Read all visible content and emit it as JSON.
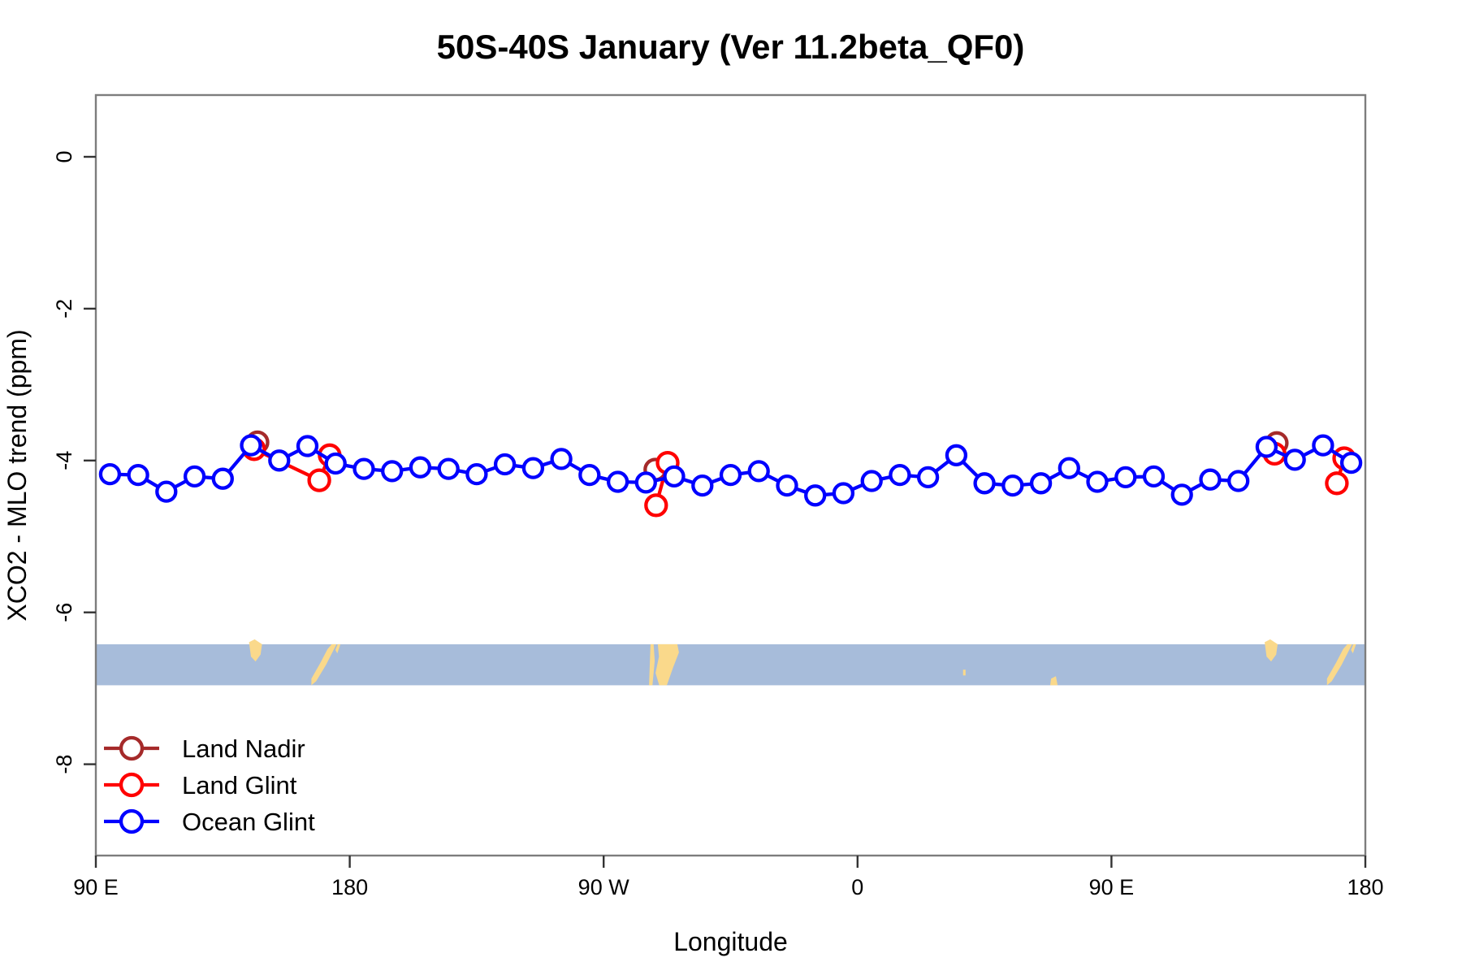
{
  "page": {
    "title": "50S-40S January (Ver 11.2beta_QF0)"
  },
  "axes": {
    "xlabel": "Longitude",
    "ylabel": "XCO2 - MLO trend (ppm)",
    "x_ticks": [
      {
        "pos": 90,
        "label": "90 E"
      },
      {
        "pos": 180,
        "label": "180"
      },
      {
        "pos": 270,
        "label": "90 W"
      },
      {
        "pos": 360,
        "label": "0"
      },
      {
        "pos": 450,
        "label": "90 E"
      },
      {
        "pos": 540,
        "label": "180"
      }
    ],
    "y_ticks": [
      {
        "pos": 0,
        "label": "0"
      },
      {
        "pos": -2,
        "label": "-2"
      },
      {
        "pos": -4,
        "label": "-4"
      },
      {
        "pos": -6,
        "label": "-6"
      },
      {
        "pos": -8,
        "label": "-8"
      }
    ]
  },
  "legend": {
    "items": [
      {
        "label": "Land Nadir",
        "color": "#A52A2A"
      },
      {
        "label": "Land Glint",
        "color": "#FF0000"
      },
      {
        "label": "Ocean Glint",
        "color": "#0000FF"
      }
    ]
  },
  "chart_data": {
    "type": "line",
    "title": "50S-40S January (Ver 11.2beta_QF0)",
    "xlabel": "Longitude",
    "ylabel": "XCO2 - MLO trend (ppm)",
    "xlim": [
      90,
      540
    ],
    "ylim": [
      -9.2,
      0.8
    ],
    "x_tick_values": [
      90,
      180,
      270,
      360,
      450,
      540
    ],
    "x_tick_labels": [
      "90 E",
      "180",
      "90 W",
      "0",
      "90 E",
      "180"
    ],
    "y_tick_values": [
      0,
      -2,
      -4,
      -6,
      -8
    ],
    "grid": false,
    "legend_position": "bottom-left-inside",
    "marker": "open-circle",
    "series": [
      {
        "name": "Land Nadir",
        "color": "#A52A2A",
        "marker_radius": 12.5,
        "segments": [
          [
            [
              147.3,
              -3.76
            ]
          ],
          [
            [
              288.3,
              -4.12
            ]
          ],
          [
            [
              508.6,
              -3.77
            ]
          ]
        ]
      },
      {
        "name": "Land Glint",
        "color": "#FF0000",
        "marker_radius": 12.5,
        "segments": [
          [
            [
              146.1,
              -3.85
            ],
            [
              169.2,
              -4.26
            ],
            [
              172.9,
              -3.93
            ]
          ],
          [
            [
              288.6,
              -4.59
            ],
            [
              292.7,
              -4.03
            ]
          ],
          [
            [
              507.8,
              -3.91
            ]
          ],
          [
            [
              529.9,
              -4.3
            ],
            [
              532.5,
              -3.97
            ]
          ]
        ]
      },
      {
        "name": "Ocean Glint",
        "color": "#0000FF",
        "marker_radius": 11.5,
        "segments": [
          [
            [
              95,
              -4.18
            ],
            [
              105,
              -4.19
            ],
            [
              115,
              -4.41
            ],
            [
              125,
              -4.21
            ],
            [
              135,
              -4.24
            ],
            [
              145,
              -3.8
            ],
            [
              155,
              -4.0
            ],
            [
              165,
              -3.81
            ],
            [
              175,
              -4.04
            ],
            [
              185,
              -4.11
            ],
            [
              195,
              -4.14
            ],
            [
              205,
              -4.09
            ],
            [
              215,
              -4.11
            ],
            [
              225,
              -4.18
            ],
            [
              235,
              -4.05
            ],
            [
              245,
              -4.1
            ],
            [
              255,
              -3.98
            ],
            [
              265,
              -4.19
            ],
            [
              275,
              -4.28
            ],
            [
              285,
              -4.29
            ],
            [
              295,
              -4.21
            ],
            [
              305,
              -4.33
            ],
            [
              315,
              -4.19
            ],
            [
              325,
              -4.14
            ],
            [
              335,
              -4.33
            ],
            [
              345,
              -4.46
            ],
            [
              355,
              -4.43
            ],
            [
              365,
              -4.27
            ],
            [
              375,
              -4.19
            ],
            [
              385,
              -4.22
            ],
            [
              395,
              -3.93
            ],
            [
              405,
              -4.3
            ],
            [
              415,
              -4.33
            ],
            [
              425,
              -4.3
            ],
            [
              435,
              -4.1
            ],
            [
              445,
              -4.28
            ],
            [
              455,
              -4.22
            ],
            [
              465,
              -4.21
            ],
            [
              475,
              -4.45
            ],
            [
              485,
              -4.25
            ],
            [
              495,
              -4.27
            ],
            [
              505,
              -3.82
            ],
            [
              515,
              -3.99
            ],
            [
              525,
              -3.8
            ],
            [
              535,
              -4.03
            ]
          ]
        ]
      }
    ],
    "map_strip": {
      "ocean_color": "#A7BCDA",
      "land_color": "#FAD98B",
      "ppm_top": -6.42,
      "ppm_bottom": -6.96,
      "repeat_offset_degrees": 360,
      "patches": [
        {
          "name": "tasmania",
          "polys": [
            [
              [
                144.3,
                -0.05
              ],
              [
                146.3,
                -0.12
              ],
              [
                148.9,
                0.0
              ],
              [
                148.4,
                0.25
              ],
              [
                146.6,
                0.42
              ],
              [
                145.0,
                0.3
              ]
            ]
          ]
        },
        {
          "name": "new-zealand",
          "polys": [
            [
              [
                173.6,
                0.0
              ],
              [
                175.3,
                0.0
              ],
              [
                171.6,
                0.5
              ],
              [
                168.1,
                0.9
              ],
              [
                166.4,
                1.0
              ],
              [
                166.4,
                0.84
              ],
              [
                169.6,
                0.45
              ],
              [
                172.1,
                0.12
              ]
            ],
            [
              [
                175.7,
                0.0
              ],
              [
                176.7,
                0.0
              ],
              [
                175.6,
                0.22
              ],
              [
                174.9,
                0.14
              ]
            ]
          ]
        },
        {
          "name": "south-america",
          "polys": [
            [
              [
                286.6,
                0.0
              ],
              [
                287.7,
                0.0
              ],
              [
                288.1,
                0.4
              ],
              [
                287.3,
                1.0
              ],
              [
                286.1,
                1.0
              ]
            ],
            [
              [
                289.2,
                0.0
              ],
              [
                296.1,
                0.0
              ],
              [
                296.7,
                0.2
              ],
              [
                294.7,
                0.55
              ],
              [
                292.4,
                1.0
              ],
              [
                289.7,
                1.0
              ],
              [
                288.4,
                0.7
              ],
              [
                289.6,
                0.3
              ]
            ]
          ]
        },
        {
          "name": "prince-edward-island",
          "polys": [
            [
              [
                397.4,
                0.62
              ],
              [
                398.3,
                0.62
              ],
              [
                398.3,
                0.76
              ],
              [
                397.4,
                0.76
              ]
            ]
          ]
        },
        {
          "name": "kerguelen-island",
          "polys": [
            [
              [
                428.6,
                0.84
              ],
              [
                430.3,
                0.78
              ],
              [
                430.9,
                1.0
              ],
              [
                428.3,
                1.0
              ]
            ]
          ]
        }
      ]
    }
  }
}
